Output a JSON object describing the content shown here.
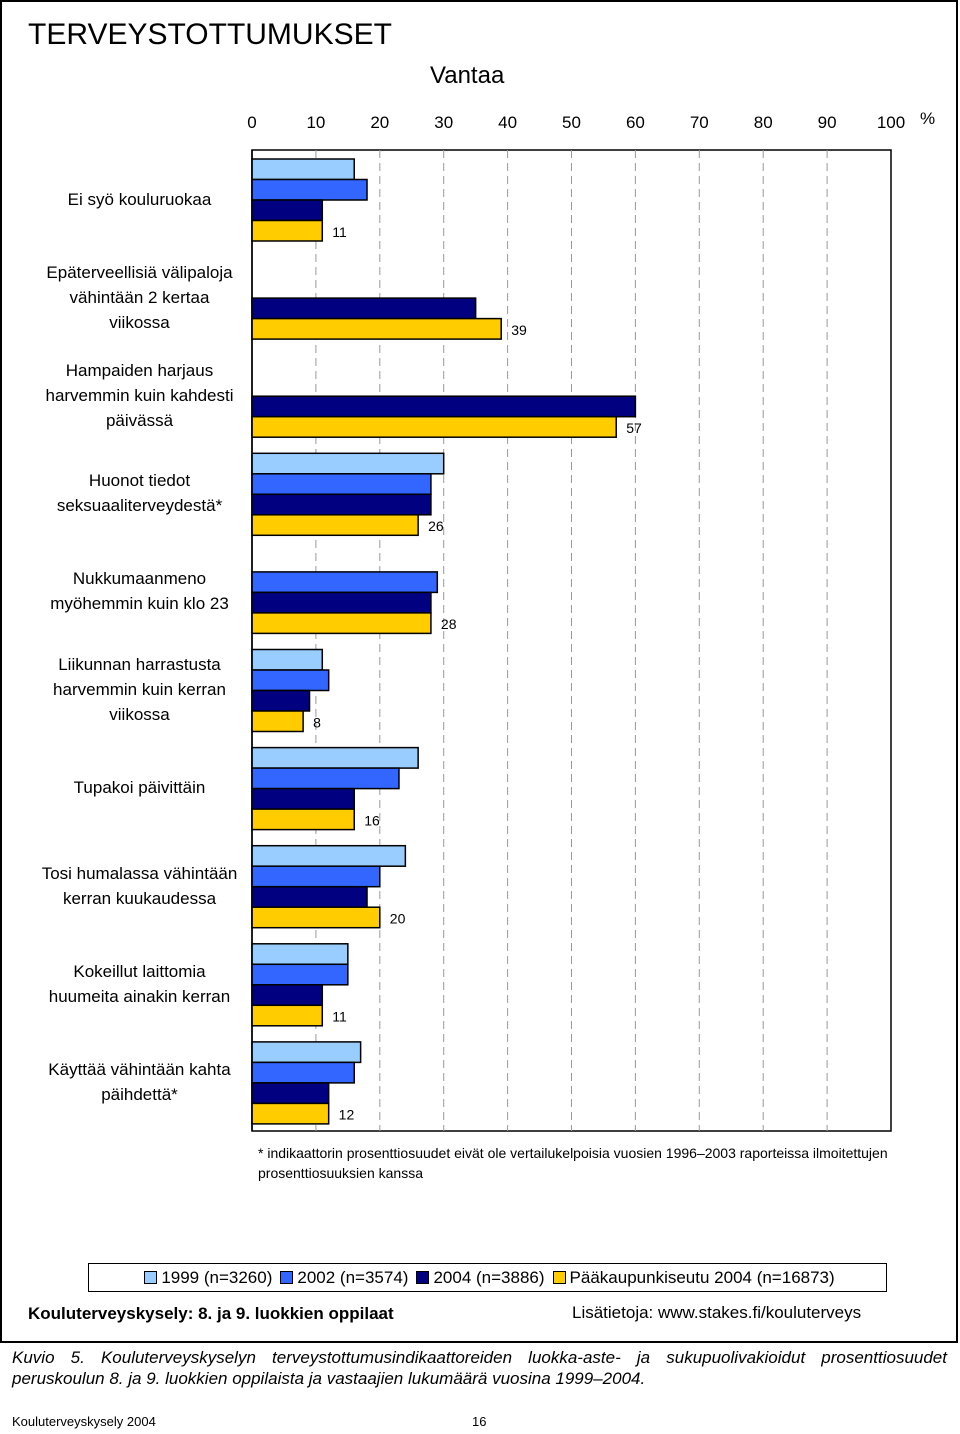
{
  "chart_data": {
    "type": "bar",
    "orientation": "horizontal",
    "title": "TERVEYSTOTTUMUKSET",
    "subtitle": "Vantaa",
    "unit": "%",
    "categories": [
      "Ei syö kouluruokaa",
      "Epäterveellisiä välipaloja vähintään 2 kertaa viikossa",
      "Hampaiden harjaus harvemmin kuin kahdesti päivässä",
      "Huonot tiedot seksuaaliterveydestä*",
      "Nukkumaanmeno myöhemmin kuin klo 23",
      "Liikunnan harrastusta harvemmin kuin kerran viikossa",
      "Tupakoi päivittäin",
      "Tosi humalassa vähintään kerran kuukaudessa",
      "Kokeillut laittomia huumeita ainakin kerran",
      "Käyttää vähintään kahta päihdettä*"
    ],
    "series": [
      {
        "name": "1999 (n=3260)",
        "color": "#99ccff",
        "values": [
          16,
          null,
          null,
          30,
          null,
          11,
          26,
          24,
          15,
          17
        ]
      },
      {
        "name": "2002 (n=3574)",
        "color": "#3366ff",
        "values": [
          18,
          null,
          null,
          28,
          29,
          12,
          23,
          20,
          15,
          16
        ]
      },
      {
        "name": "2004 (n=3886)",
        "color": "#000080",
        "values": [
          11,
          35,
          60,
          28,
          28,
          9,
          16,
          18,
          11,
          12
        ]
      },
      {
        "name": "Pääkaupunkiseutu 2004 (n=16873)",
        "color": "#ffcc00",
        "values": [
          11,
          39,
          57,
          26,
          28,
          8,
          16,
          20,
          11,
          12
        ]
      }
    ],
    "xlim": [
      0,
      100
    ],
    "xticks": [
      0,
      10,
      20,
      30,
      40,
      50,
      60,
      70,
      80,
      90,
      100
    ],
    "grid": true,
    "footnote": "* indikaattorin prosenttiosuudet eivät ole vertailukelpoisia vuosien 1996–2003 raporteissa ilmoitettujen prosenttiosuuksien kanssa"
  },
  "source": "Kouluterveyskysely: 8. ja 9. luokkien oppilaat",
  "info": "Lisätietoja: www.stakes.fi/kouluterveys",
  "caption": "Kuvio 5. Kouluterveyskyselyn terveystottumusindikaattoreiden luokka-aste- ja sukupuolivakioidut prosenttiosuudet peruskoulun 8. ja 9. luokkien oppilaista ja vastaajien lukumäärä vuosina 1999–2004.",
  "footer": {
    "label": "Kouluterveyskysely 2004",
    "page_number": "16"
  }
}
